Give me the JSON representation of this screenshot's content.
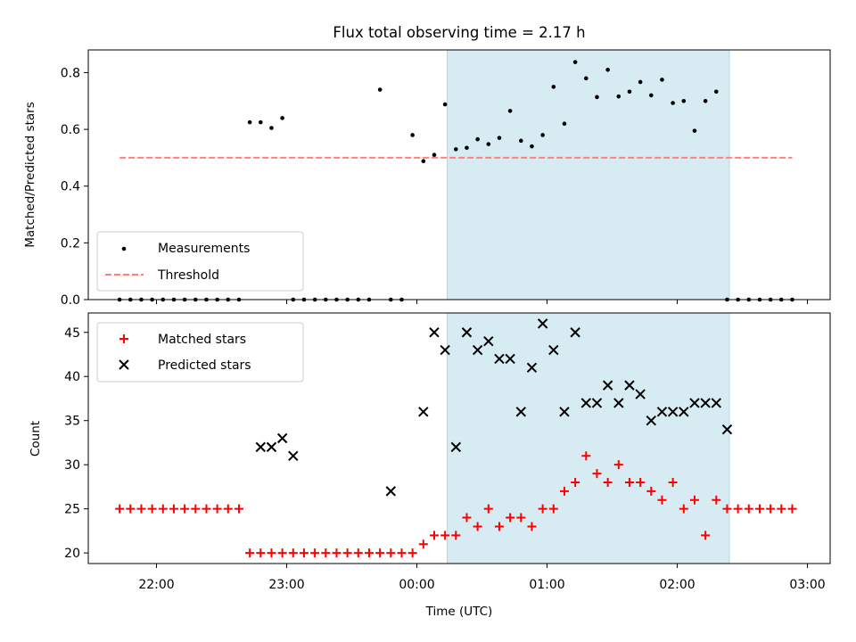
{
  "title": "Flux total observing time = 2.17 h",
  "colors": {
    "highlight": "#add8e6",
    "threshold": "#ff7f7f",
    "matched": "#ff0000",
    "predicted": "#000000",
    "measurement": "#000000"
  },
  "chart_data": [
    {
      "type": "scatter",
      "ylabel": "Matched/Predicted stars",
      "xlabel": "",
      "ylim": [
        0,
        0.88
      ],
      "yticks": [
        "0.0",
        "0.2",
        "0.4",
        "0.6",
        "0.8"
      ],
      "highlight_span": [
        "00:14",
        "02:24"
      ],
      "legend": {
        "placement": "lower-left",
        "entries": [
          "Measurements",
          "Threshold"
        ]
      },
      "series": [
        {
          "name": "Measurements",
          "marker": "dot",
          "x": [
            "21:43",
            "21:48",
            "21:53",
            "21:58",
            "22:03",
            "22:08",
            "22:13",
            "22:18",
            "22:23",
            "22:28",
            "22:33",
            "22:38",
            "22:43",
            "22:48",
            "22:53",
            "22:58",
            "23:03",
            "23:08",
            "23:13",
            "23:18",
            "23:23",
            "23:28",
            "23:33",
            "23:38",
            "23:43",
            "23:48",
            "23:53",
            "23:58",
            "00:03",
            "00:08",
            "00:13",
            "00:18",
            "00:23",
            "00:28",
            "00:33",
            "00:38",
            "00:43",
            "00:48",
            "00:53",
            "00:58",
            "01:03",
            "01:08",
            "01:13",
            "01:18",
            "01:23",
            "01:28",
            "01:33",
            "01:38",
            "01:43",
            "01:48",
            "01:53",
            "01:58",
            "02:03",
            "02:08",
            "02:13",
            "02:18",
            "02:23",
            "02:28",
            "02:33",
            "02:38",
            "02:43",
            "02:48",
            "02:53"
          ],
          "y": [
            0,
            0,
            0,
            0,
            0,
            0,
            0,
            0,
            0,
            0,
            0,
            0,
            0.625,
            0.625,
            0.605,
            0.64,
            0,
            0,
            0,
            0,
            0,
            0,
            0,
            0,
            0.74,
            0,
            0,
            0.58,
            0.488,
            0.51,
            0.688,
            0.53,
            0.535,
            0.565,
            0.548,
            0.57,
            0.665,
            0.56,
            0.54,
            0.58,
            0.75,
            0.62,
            0.837,
            0.78,
            0.714,
            0.81,
            0.716,
            0.733,
            0.767,
            0.72,
            0.775,
            0.693,
            0.7,
            0.595,
            0.7,
            0.733,
            0,
            0,
            0,
            0,
            0,
            0,
            0
          ]
        },
        {
          "name": "Threshold",
          "style": "dashed",
          "x": [
            "21:43",
            "02:53"
          ],
          "y": [
            0.5,
            0.5
          ]
        }
      ]
    },
    {
      "type": "scatter",
      "ylabel": "Count",
      "xlabel": "Time (UTC)",
      "ylim": [
        18.8,
        47.2
      ],
      "yticks": [
        "20",
        "25",
        "30",
        "35",
        "40",
        "45"
      ],
      "xticks": [
        "22:00",
        "23:00",
        "00:00",
        "01:00",
        "02:00",
        "03:00"
      ],
      "highlight_span": [
        "00:14",
        "02:24"
      ],
      "legend": {
        "placement": "upper-left",
        "entries": [
          "Matched stars",
          "Predicted stars"
        ]
      },
      "series": [
        {
          "name": "Matched stars",
          "marker": "plus",
          "x": [
            "21:43",
            "21:48",
            "21:53",
            "21:58",
            "22:03",
            "22:08",
            "22:13",
            "22:18",
            "22:23",
            "22:28",
            "22:33",
            "22:38",
            "22:43",
            "22:48",
            "22:53",
            "22:58",
            "23:03",
            "23:08",
            "23:13",
            "23:18",
            "23:23",
            "23:28",
            "23:33",
            "23:38",
            "23:43",
            "23:48",
            "23:53",
            "23:58",
            "00:03",
            "00:08",
            "00:13",
            "00:18",
            "00:23",
            "00:28",
            "00:33",
            "00:38",
            "00:43",
            "00:48",
            "00:53",
            "00:58",
            "01:03",
            "01:08",
            "01:13",
            "01:18",
            "01:23",
            "01:28",
            "01:33",
            "01:38",
            "01:43",
            "01:48",
            "01:53",
            "01:58",
            "02:03",
            "02:08",
            "02:13",
            "02:18",
            "02:23",
            "02:28",
            "02:33",
            "02:38",
            "02:43",
            "02:48",
            "02:53"
          ],
          "y": [
            25,
            25,
            25,
            25,
            25,
            25,
            25,
            25,
            25,
            25,
            25,
            25,
            20,
            20,
            20,
            20,
            20,
            20,
            20,
            20,
            20,
            20,
            20,
            20,
            20,
            20,
            20,
            20,
            21,
            22,
            22,
            22,
            24,
            23,
            25,
            23,
            24,
            24,
            23,
            25,
            25,
            27,
            28,
            31,
            29,
            28,
            30,
            28,
            28,
            27,
            26,
            28,
            25,
            26,
            22,
            26,
            25,
            25,
            25,
            25,
            25,
            25,
            25
          ]
        },
        {
          "name": "Predicted stars",
          "marker": "x",
          "x": [
            "22:48",
            "22:53",
            "22:58",
            "23:03",
            "23:48",
            "00:03",
            "00:08",
            "00:13",
            "00:18",
            "00:23",
            "00:28",
            "00:33",
            "00:38",
            "00:43",
            "00:48",
            "00:53",
            "00:58",
            "01:03",
            "01:08",
            "01:13",
            "01:18",
            "01:23",
            "01:28",
            "01:33",
            "01:38",
            "01:43",
            "01:48",
            "01:53",
            "01:58",
            "02:03",
            "02:08",
            "02:13",
            "02:18",
            "02:23"
          ],
          "y": [
            32,
            32,
            33,
            31,
            27,
            36,
            45,
            43,
            32,
            45,
            43,
            44,
            42,
            42,
            36,
            41,
            46,
            43,
            36,
            45,
            37,
            37,
            39,
            37,
            39,
            38,
            35,
            36,
            36,
            36,
            37,
            37,
            37,
            34
          ]
        }
      ]
    }
  ]
}
